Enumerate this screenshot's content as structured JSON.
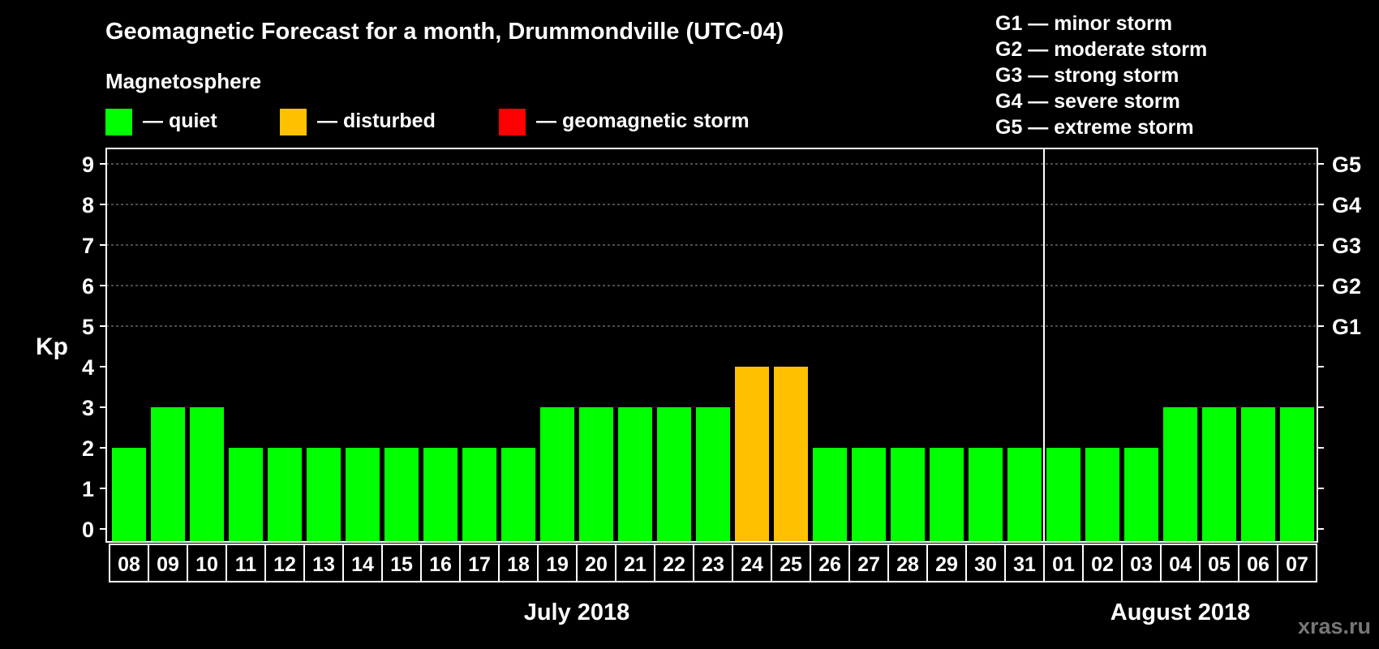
{
  "chart_data": {
    "type": "bar",
    "title": "Geomagnetic Forecast for a month, Drummondville (UTC-04)",
    "subtitle": "Magnetosphere",
    "ylabel": "Kp",
    "ylim": [
      0,
      9
    ],
    "yticks": [
      "0",
      "1",
      "2",
      "3",
      "4",
      "5",
      "6",
      "7",
      "8",
      "9"
    ],
    "storm_levels": [
      {
        "kp": 5,
        "label": "G1"
      },
      {
        "kp": 6,
        "label": "G2"
      },
      {
        "kp": 7,
        "label": "G3"
      },
      {
        "kp": 8,
        "label": "G4"
      },
      {
        "kp": 9,
        "label": "G5"
      }
    ],
    "legend": [
      {
        "label": "— quiet",
        "color": "#00ff00"
      },
      {
        "label": "— disturbed",
        "color": "#ffc000"
      },
      {
        "label": "— geomagnetic storm",
        "color": "#ff0000"
      }
    ],
    "storm_legend": [
      "G1 — minor storm",
      "G2 — moderate storm",
      "G3 — strong storm",
      "G4 — severe storm",
      "G5 — extreme storm"
    ],
    "categories": [
      "08",
      "09",
      "10",
      "11",
      "12",
      "13",
      "14",
      "15",
      "16",
      "17",
      "18",
      "19",
      "20",
      "21",
      "22",
      "23",
      "24",
      "25",
      "26",
      "27",
      "28",
      "29",
      "30",
      "31",
      "01",
      "02",
      "03",
      "04",
      "05",
      "06",
      "07"
    ],
    "values": [
      2,
      3,
      3,
      2,
      2,
      2,
      2,
      2,
      2,
      2,
      2,
      3,
      3,
      3,
      3,
      3,
      4,
      4,
      2,
      2,
      2,
      2,
      2,
      2,
      2,
      2,
      2,
      3,
      3,
      3,
      3
    ],
    "status": [
      "quiet",
      "quiet",
      "quiet",
      "quiet",
      "quiet",
      "quiet",
      "quiet",
      "quiet",
      "quiet",
      "quiet",
      "quiet",
      "quiet",
      "quiet",
      "quiet",
      "quiet",
      "quiet",
      "disturbed",
      "disturbed",
      "quiet",
      "quiet",
      "quiet",
      "quiet",
      "quiet",
      "quiet",
      "quiet",
      "quiet",
      "quiet",
      "quiet",
      "quiet",
      "quiet",
      "quiet"
    ],
    "months": [
      {
        "label": "July 2018",
        "start_index": 0,
        "count": 24
      },
      {
        "label": "August 2018",
        "start_index": 24,
        "count": 7
      }
    ],
    "colors": {
      "quiet": "#00ff00",
      "disturbed": "#ffc000",
      "storm": "#ff0000",
      "grid": "#999999"
    }
  },
  "watermark": "xras.ru"
}
